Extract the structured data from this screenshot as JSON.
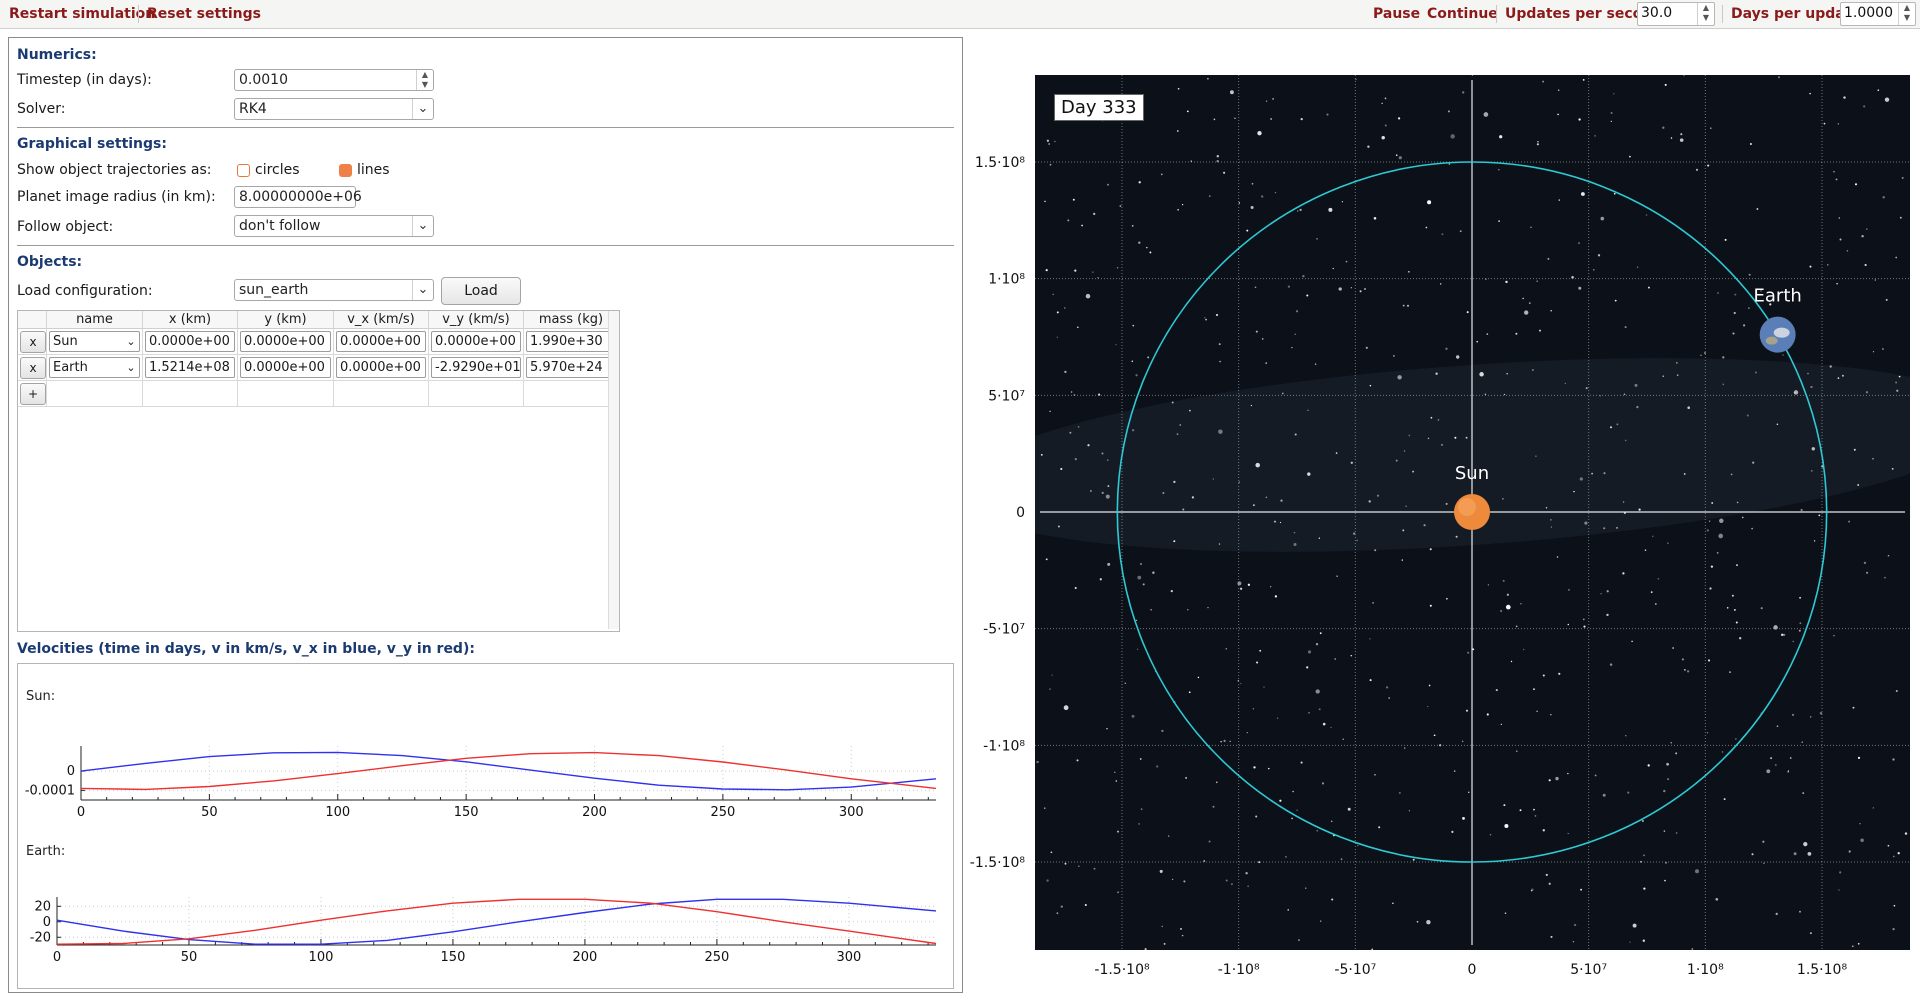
{
  "toolbar": {
    "restart_label": "Restart simulation",
    "reset_label": "Reset settings",
    "pause_label": "Pause",
    "continue_label": "Continue",
    "ups_label": "Updates per second:",
    "ups_value": "30.0",
    "dpu_label": "Days per update:",
    "dpu_value": "1.0000"
  },
  "numerics": {
    "title": "Numerics:",
    "timestep_label": "Timestep (in days):",
    "timestep_value": "0.0010",
    "solver_label": "Solver:",
    "solver_value": "RK4"
  },
  "graphics": {
    "title": "Graphical settings:",
    "trajectories_label": "Show object trajectories as:",
    "circles_label": "circles",
    "lines_label": "lines",
    "circles_checked": false,
    "lines_checked": true,
    "radius_label": "Planet image radius (in km):",
    "radius_value": "8.00000000e+06",
    "follow_label": "Follow object:",
    "follow_value": "don't follow"
  },
  "objects": {
    "title": "Objects:",
    "load_config_label": "Load configuration:",
    "load_config_value": "sun_earth",
    "load_button": "Load",
    "columns": [
      "name",
      "x (km)",
      "y (km)",
      "v_x (km/s)",
      "v_y (km/s)",
      "mass (kg)"
    ],
    "remove_label": "x",
    "add_label": "+",
    "rows": [
      {
        "name": "Sun",
        "x": "0.0000e+00",
        "y": "0.0000e+00",
        "vx": "0.0000e+00",
        "vy": "0.0000e+00",
        "mass": "1.990e+30"
      },
      {
        "name": "Earth",
        "x": "1.5214e+08",
        "y": "0.0000e+00",
        "vx": "0.0000e+00",
        "vy": "-2.9290e+01",
        "mass": "5.970e+24"
      }
    ]
  },
  "velocities": {
    "title": "Velocities (time in days, v in km/s, v_x in blue, v_y in red):",
    "plots": [
      {
        "label": "Sun:",
        "y_ticks": [
          "0",
          "-0.0001"
        ],
        "x_ticks": [
          "0",
          "50",
          "100",
          "150",
          "200",
          "250",
          "300"
        ]
      },
      {
        "label": "Earth:",
        "y_ticks": [
          "20",
          "0",
          "-20"
        ],
        "x_ticks": [
          "0",
          "50",
          "100",
          "150",
          "200",
          "250",
          "300"
        ]
      }
    ]
  },
  "chart_data": [
    {
      "type": "line",
      "title": "Sun:",
      "x": [
        0,
        25,
        50,
        75,
        100,
        125,
        150,
        175,
        200,
        225,
        250,
        275,
        300,
        333
      ],
      "series": [
        {
          "name": "v_x",
          "color": "#3030ee",
          "values": [
            0,
            4e-05,
            7.5e-05,
            9.5e-05,
            9.7e-05,
            8e-05,
            4.8e-05,
            5e-06,
            -3.7e-05,
            -7.3e-05,
            -9.3e-05,
            -9.7e-05,
            -8.3e-05,
            -4e-05
          ]
        },
        {
          "name": "v_y",
          "color": "#ee3030",
          "values": [
            -9e-05,
            -9.5e-05,
            -8e-05,
            -5.1e-05,
            -1.3e-05,
            2.8e-05,
            6.6e-05,
            9e-05,
            9.6e-05,
            8e-05,
            4.7e-05,
            5e-06,
            -4e-05,
            -9e-05
          ]
        }
      ],
      "xlim": [
        0,
        333
      ],
      "ylim": [
        -0.00015,
        0.00013
      ]
    },
    {
      "type": "line",
      "title": "Earth:",
      "x": [
        0,
        25,
        50,
        75,
        100,
        125,
        150,
        175,
        200,
        225,
        250,
        275,
        300,
        333
      ],
      "series": [
        {
          "name": "v_x",
          "color": "#3030ee",
          "values": [
            2,
            -12,
            -23,
            -29,
            -29,
            -24,
            -13,
            0,
            12,
            23,
            29,
            29,
            24,
            14
          ]
        },
        {
          "name": "v_y",
          "color": "#ee3030",
          "values": [
            -29,
            -28,
            -22,
            -11,
            2,
            14,
            24,
            29,
            29,
            24,
            13,
            0,
            -12,
            -28
          ]
        }
      ],
      "xlim": [
        0,
        333
      ],
      "ylim": [
        -30,
        32
      ]
    },
    {
      "type": "scatter",
      "title": "Day 333",
      "x_ticks": [
        "-1.5·10⁸",
        "-1·10⁸",
        "-5·10⁷",
        "0",
        "5·10⁷",
        "1·10⁸",
        "1.5·10⁸"
      ],
      "y_ticks": [
        "1.5·10⁸",
        "1·10⁸",
        "5·10⁷",
        "0",
        "-5·10⁷",
        "-1·10⁸",
        "-1.5·10⁸"
      ],
      "objects": [
        {
          "name": "Sun",
          "x": 0,
          "y": 0,
          "color": "#ee8a3c"
        },
        {
          "name": "Earth",
          "x": 131000000,
          "y": 76000000,
          "color": "#5a7fb8"
        }
      ],
      "trajectory_color": "#2dc9d4",
      "xlim": [
        -180000000,
        180000000
      ],
      "ylim": [
        -180000000,
        180000000
      ]
    }
  ]
}
